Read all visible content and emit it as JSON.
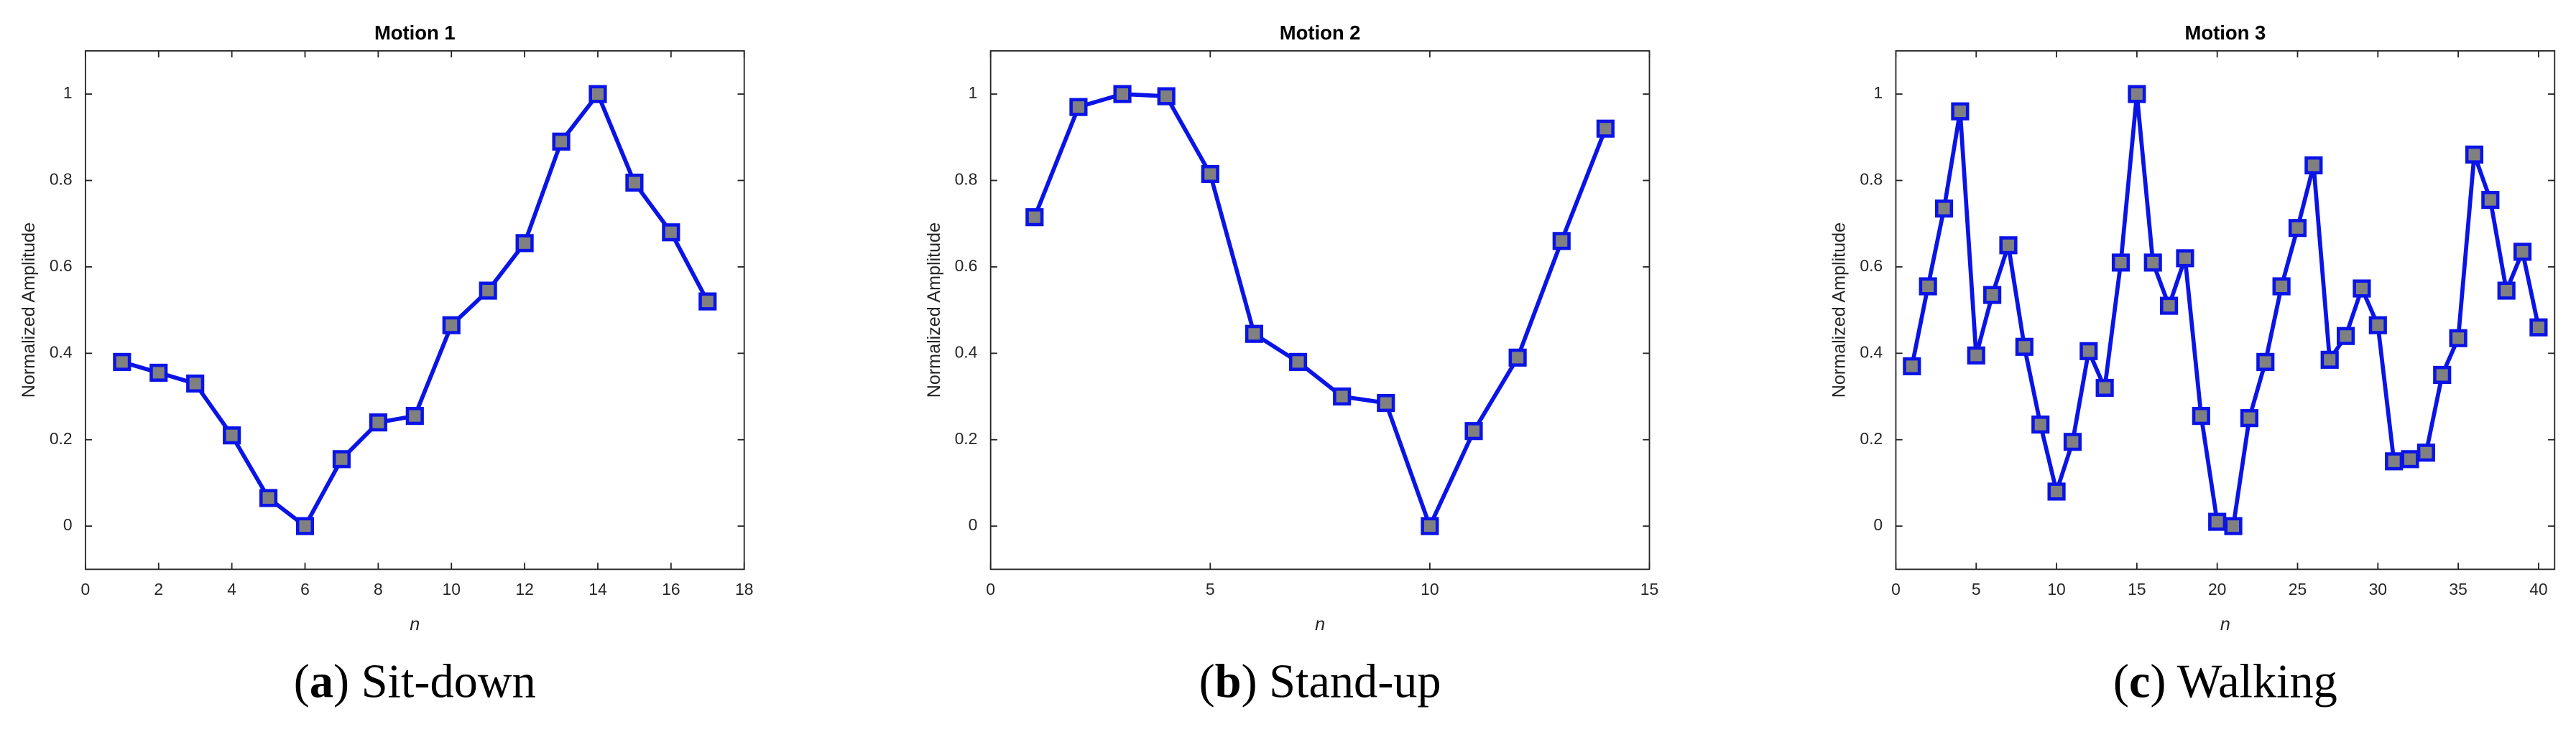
{
  "chart_data": [
    {
      "type": "line",
      "title": "Motion 1",
      "xlabel": "n",
      "ylabel": "Normalized Amplitude",
      "caption": [
        "(",
        "a",
        ") Sit-down"
      ],
      "x": [
        1,
        2,
        3,
        4,
        5,
        6,
        7,
        8,
        9,
        10,
        11,
        12,
        13,
        14,
        15,
        16,
        17
      ],
      "series": [
        {
          "color": "#0a14e6",
          "marker_color": "#808080",
          "values": [
            0.38,
            0.355,
            0.33,
            0.21,
            0.065,
            0,
            0.155,
            0.24,
            0.255,
            0.465,
            0.545,
            0.655,
            0.89,
            1,
            0.795,
            0.68,
            0.52
          ]
        }
      ],
      "xlim": [
        0,
        18
      ],
      "xticks": [
        0,
        2,
        4,
        6,
        8,
        10,
        12,
        14,
        16,
        18
      ],
      "ylim": [
        -0.1,
        1.1
      ],
      "yticks": [
        0,
        0.2,
        0.4,
        0.6,
        0.8,
        1
      ]
    },
    {
      "type": "line",
      "title": "Motion 2",
      "xlabel": "n",
      "ylabel": "Normalized Amplitude",
      "caption": [
        "(",
        "b",
        ") Stand-up"
      ],
      "x": [
        1,
        2,
        3,
        4,
        5,
        6,
        7,
        8,
        9,
        10,
        11,
        12,
        13,
        14
      ],
      "series": [
        {
          "color": "#0a14e6",
          "marker_color": "#808080",
          "values": [
            0.715,
            0.97,
            1,
            0.995,
            0.815,
            0.445,
            0.38,
            0.3,
            0.285,
            0,
            0.22,
            0.39,
            0.66,
            0.92
          ]
        }
      ],
      "xlim": [
        0,
        15
      ],
      "xticks": [
        0,
        5,
        10,
        15
      ],
      "ylim": [
        -0.1,
        1.1
      ],
      "yticks": [
        0,
        0.2,
        0.4,
        0.6,
        0.8,
        1
      ]
    },
    {
      "type": "line",
      "title": "Motion 3",
      "xlabel": "n",
      "ylabel": "Normalized Amplitude",
      "caption": [
        "(",
        "c",
        ") Walking"
      ],
      "x": [
        1,
        2,
        3,
        4,
        5,
        6,
        7,
        8,
        9,
        10,
        11,
        12,
        13,
        14,
        15,
        16,
        17,
        18,
        19,
        20,
        21,
        22,
        23,
        24,
        25,
        26,
        27,
        28,
        29,
        30,
        31,
        32,
        33,
        34,
        35,
        36,
        37,
        38,
        39,
        40
      ],
      "series": [
        {
          "color": "#0a14e6",
          "marker_color": "#808080",
          "values": [
            0.37,
            0.555,
            0.735,
            0.96,
            0.395,
            0.535,
            0.65,
            0.415,
            0.235,
            0.08,
            0.195,
            0.405,
            0.32,
            0.61,
            1,
            0.61,
            0.51,
            0.62,
            0.255,
            0.01,
            0,
            0.25,
            0.38,
            0.555,
            0.69,
            0.835,
            0.385,
            0.44,
            0.55,
            0.465,
            0.15,
            0.155,
            0.17,
            0.35,
            0.435,
            0.86,
            0.755,
            0.545,
            0.635,
            0.46
          ]
        }
      ],
      "xlim": [
        0,
        41
      ],
      "xticks": [
        0,
        5,
        10,
        15,
        20,
        25,
        30,
        35,
        40
      ],
      "ylim": [
        -0.1,
        1.1
      ],
      "yticks": [
        0,
        0.2,
        0.4,
        0.6,
        0.8,
        1
      ]
    }
  ]
}
